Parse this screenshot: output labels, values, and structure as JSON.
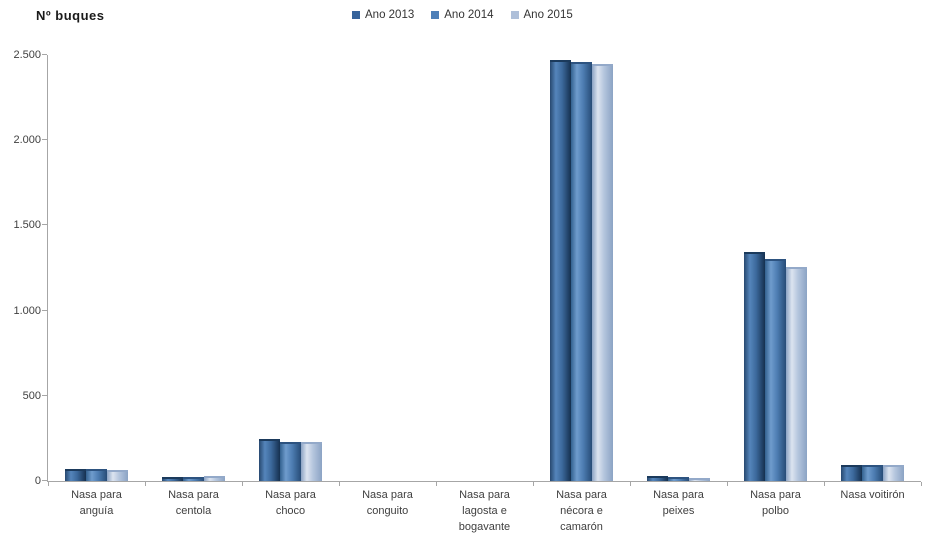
{
  "title": "Nº buques",
  "axis_color": "#a6a6a6",
  "chart_data": {
    "type": "bar",
    "title": "Nº buques",
    "ylabel": "Nº buques",
    "xlabel": "",
    "grid": false,
    "legend_position": "top-center",
    "ylim": [
      0,
      2500
    ],
    "yticks": [
      {
        "value": 0,
        "label": "0"
      },
      {
        "value": 500,
        "label": "500"
      },
      {
        "value": 1000,
        "label": "1.000"
      },
      {
        "value": 1500,
        "label": "1.500"
      },
      {
        "value": 2000,
        "label": "2.000"
      },
      {
        "value": 2500,
        "label": "2.500"
      }
    ],
    "categories": [
      {
        "id": "anguia",
        "lines": [
          "Nasa para",
          "anguía"
        ]
      },
      {
        "id": "centola",
        "lines": [
          "Nasa para",
          "centola"
        ]
      },
      {
        "id": "choco",
        "lines": [
          "Nasa para",
          "choco"
        ]
      },
      {
        "id": "conguito",
        "lines": [
          "Nasa para",
          "conguito"
        ]
      },
      {
        "id": "lagosta",
        "lines": [
          "Nasa para",
          "lagosta e",
          "bogavante"
        ]
      },
      {
        "id": "necora",
        "lines": [
          "Nasa para",
          "nécora e",
          "camarón"
        ]
      },
      {
        "id": "peixes",
        "lines": [
          "Nasa para",
          "peixes"
        ]
      },
      {
        "id": "polbo",
        "lines": [
          "Nasa para",
          "polbo"
        ]
      },
      {
        "id": "voitiron",
        "lines": [
          "Nasa voitirón"
        ]
      }
    ],
    "series": [
      {
        "name": "Ano 2013",
        "swatch": "#36639b",
        "cap": "#1b3a5c",
        "gradient": [
          "#27486f",
          "#5585bb",
          "#3c699c",
          "#15304f"
        ],
        "values": [
          60,
          12,
          235,
          0,
          0,
          2460,
          15,
          1330,
          85
        ]
      },
      {
        "name": "Ano 2014",
        "swatch": "#4d7fb8",
        "cap": "#2d5380",
        "gradient": [
          "#33618f",
          "#6f9ccd",
          "#4d7db2",
          "#274c77"
        ],
        "values": [
          58,
          12,
          220,
          0,
          0,
          2450,
          10,
          1290,
          85
        ]
      },
      {
        "name": "Ano 2015",
        "swatch": "#aebfd9",
        "cap": "#93a9c9",
        "gradient": [
          "#8ba3c4",
          "#dce4f0",
          "#b4c5dd",
          "#8ba3c4"
        ],
        "values": [
          55,
          20,
          215,
          0,
          0,
          2435,
          8,
          1245,
          80
        ]
      }
    ]
  }
}
